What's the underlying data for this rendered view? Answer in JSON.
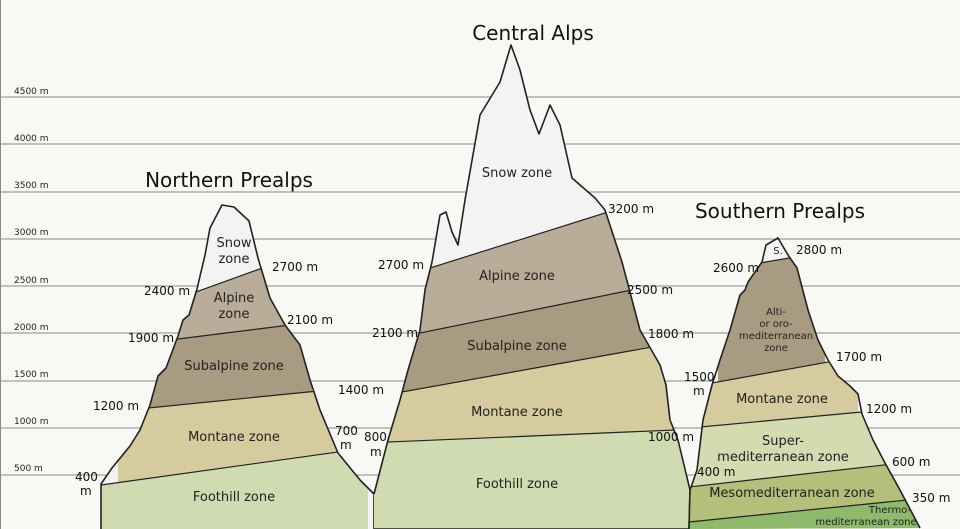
{
  "axis": {
    "ticks": [
      "4500 m",
      "4000 m",
      "3500 m",
      "3000 m",
      "2500 m",
      "2000 m",
      "1500 m",
      "1000 m",
      "500 m"
    ]
  },
  "colors": {
    "background": "#f8f8f5",
    "grid": "#888888",
    "outline": "#222222",
    "snow": "#f4f3f4",
    "alpine": "#b9ad99",
    "subalpine": "#a99b81",
    "montane": "#d5cb9e",
    "foothill": "#d1dbb2",
    "alti_oro": "#a99b81",
    "supermed": "#d3dcb1",
    "mesomed": "#b4bf79",
    "thermomed": "#8fba6b"
  },
  "northern": {
    "title": "Northern Prealps",
    "zones": {
      "snow": [
        "Snow",
        "zone"
      ],
      "alpine": [
        "Alpine",
        "zone"
      ],
      "subalpine": "Subalpine zone",
      "montane": "Montane zone",
      "foothill": "Foothill zone"
    },
    "altitudes": {
      "a2700": "2700 m",
      "a2400": "2400 m",
      "a2100": "2100 m",
      "a1900": "1900 m",
      "a1200": "1200 m",
      "a700": [
        "700",
        "m"
      ],
      "a400": [
        "400",
        "m"
      ]
    }
  },
  "central": {
    "title": "Central Alps",
    "zones": {
      "snow": "Snow zone",
      "alpine": "Alpine zone",
      "subalpine": "Subalpine zone",
      "montane": "Montane zone",
      "foothill": "Foothill zone"
    },
    "altitudes": {
      "a3200": "3200 m",
      "a2700": "2700 m",
      "a2500": "2500 m",
      "a2100": "2100 m",
      "a1800": "1800 m",
      "a1400": "1400 m",
      "a800": [
        "800",
        "m"
      ],
      "a1000": "1000 m"
    }
  },
  "southern": {
    "title": "Southern Prealps",
    "zones": {
      "snow": "S.",
      "alti_oro": [
        "Alti-",
        "or oro-",
        "mediterranean",
        "zone"
      ],
      "montane": "Montane zone",
      "supermed": [
        "Super-",
        "mediterranean zone"
      ],
      "mesomed": "Mesomediterranean zone",
      "thermomed": [
        "Thermo-",
        "mediterranean zone"
      ]
    },
    "altitudes": {
      "a2800": "2800 m",
      "a2600": "2600 m",
      "a1700": "1700 m",
      "a1500": [
        "1500",
        "m"
      ],
      "a1200": "1200 m",
      "a600": "600 m",
      "a400": "400 m",
      "a350": "350 m"
    }
  }
}
